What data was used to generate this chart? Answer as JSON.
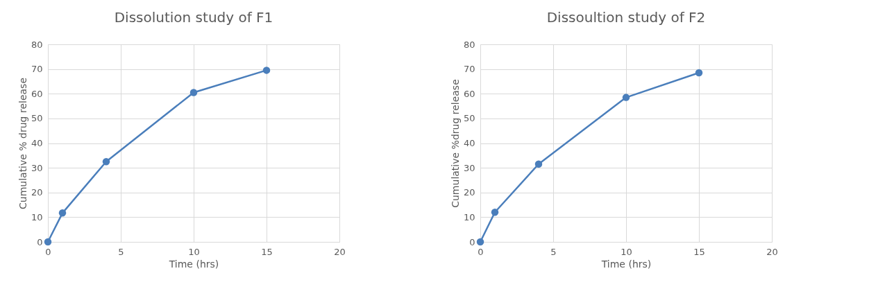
{
  "chart_data": [
    {
      "type": "line",
      "title": "Dissolution study of F1",
      "xlabel": "Time (hrs)",
      "ylabel": "Cumulative % drug release",
      "x": [
        0,
        1,
        4,
        10,
        15
      ],
      "series": [
        {
          "color": "#4a7ebb",
          "values": [
            0,
            11.7,
            32.5,
            60.5,
            69.5
          ]
        }
      ],
      "xlim": [
        0,
        20
      ],
      "xticks": [
        0,
        5,
        10,
        15,
        20
      ],
      "ylim": [
        0,
        80
      ],
      "yticks": [
        0,
        10,
        20,
        30,
        40,
        50,
        60,
        70,
        80
      ],
      "grid": true,
      "legend": false,
      "marker": "circle",
      "line_style": "solid"
    },
    {
      "type": "line",
      "title": "Dissoultion study of F2",
      "xlabel": "Time (hrs)",
      "ylabel": "Cumulative %drug release",
      "x": [
        0,
        1,
        4,
        10,
        15
      ],
      "series": [
        {
          "color": "#4a7ebb",
          "values": [
            0,
            12,
            31.5,
            58.5,
            68.5
          ]
        }
      ],
      "xlim": [
        0,
        20
      ],
      "xticks": [
        0,
        5,
        10,
        15,
        20
      ],
      "ylim": [
        0,
        80
      ],
      "yticks": [
        0,
        10,
        20,
        30,
        40,
        50,
        60,
        70,
        80
      ],
      "grid": true,
      "legend": false,
      "marker": "circle",
      "line_style": "solid"
    }
  ]
}
